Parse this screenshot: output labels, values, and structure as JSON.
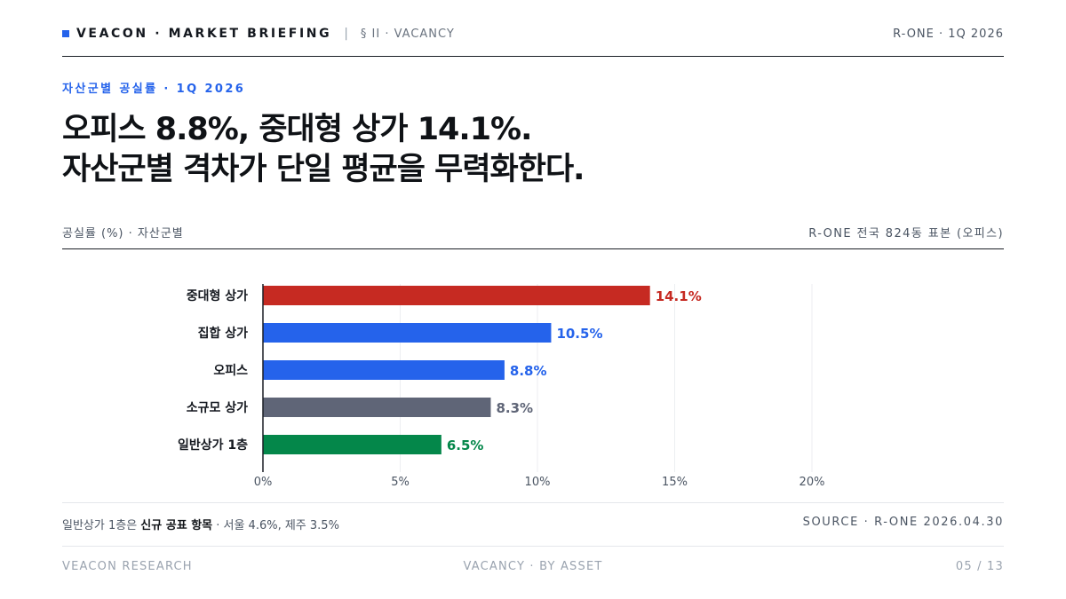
{
  "header": {
    "brand": "VEACON · MARKET BRIEFING",
    "separator": "|",
    "section": "§ II · VACANCY",
    "period": "R-ONE · 1Q 2026"
  },
  "kicker": "자산군별 공실률 · 1Q 2026",
  "headline": {
    "line1": "오피스 8.8%, 중대형 상가 14.1%.",
    "line2": "자산군별 격차가 단일 평균을 무력화한다."
  },
  "chart_head": {
    "caption": "공실률 (%) · 자산군별",
    "sample": "R-ONE 전국 824동 표본 (오피스)"
  },
  "colors": {
    "accent_blue": "#2563eb",
    "red": "#c62a22",
    "slate": "#5f6577",
    "green": "#04874a"
  },
  "chart_data": {
    "type": "bar",
    "orientation": "horizontal",
    "categories": [
      "중대형 상가",
      "집합 상가",
      "오피스",
      "소규모 상가",
      "일반상가 1층"
    ],
    "values": [
      14.1,
      10.5,
      8.8,
      8.3,
      6.5
    ],
    "value_labels": [
      "14.1%",
      "10.5%",
      "8.8%",
      "8.3%",
      "6.5%"
    ],
    "bar_colors": [
      "#c62a22",
      "#2563eb",
      "#2563eb",
      "#5f6577",
      "#04874a"
    ],
    "x_ticks": [
      0,
      5,
      10,
      15,
      20
    ],
    "x_tick_labels": [
      "0%",
      "5%",
      "10%",
      "15%",
      "20%"
    ],
    "xlim": [
      0,
      20
    ],
    "grid": true,
    "title": "",
    "xlabel": "",
    "ylabel": ""
  },
  "footer": {
    "note_prefix": "일반상가 1층은 ",
    "note_strong": "신규 공표 항목",
    "note_suffix": " · 서울 4.6%, 제주 3.5%",
    "source": "SOURCE · R-ONE 2026.04.30"
  },
  "bottom": {
    "left": "VEACON RESEARCH",
    "center": "VACANCY · BY ASSET",
    "page": "05 / 13"
  }
}
